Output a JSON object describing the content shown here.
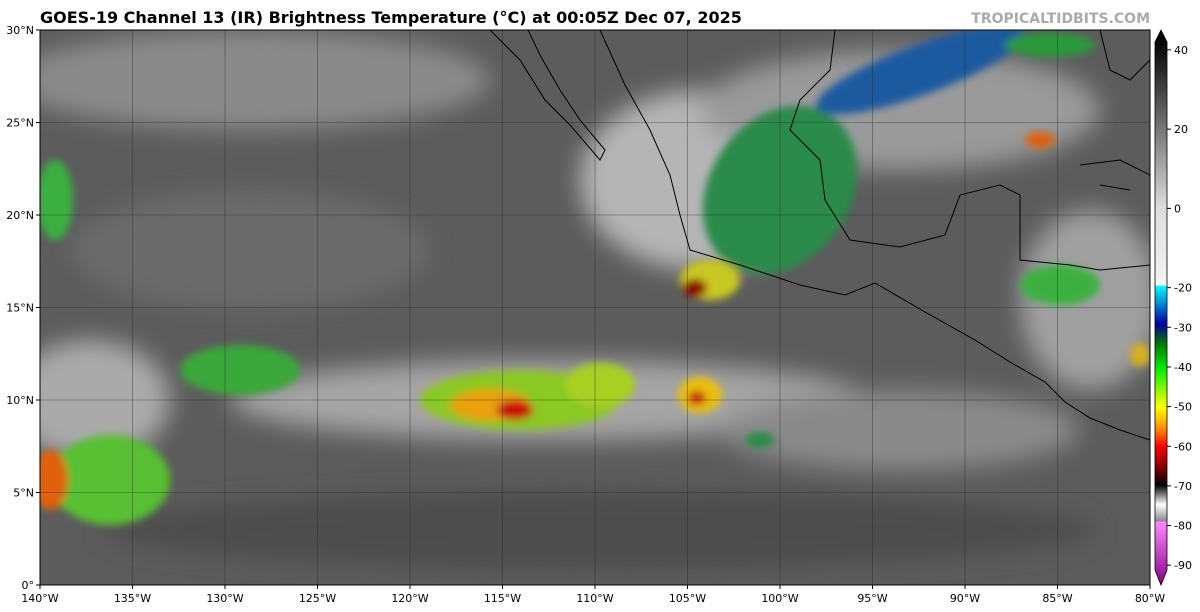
{
  "header": {
    "title": "GOES-19 Channel 13 (IR) Brightness Temperature (°C) at 00:05Z Dec 07, 2025",
    "watermark": "TROPICALTIDBITS.COM"
  },
  "map": {
    "lon_range": [
      -140,
      -80
    ],
    "lat_range": [
      0,
      30
    ],
    "lon_ticks": [
      {
        "value": -140,
        "label": "140°W"
      },
      {
        "value": -135,
        "label": "135°W"
      },
      {
        "value": -130,
        "label": "130°W"
      },
      {
        "value": -125,
        "label": "125°W"
      },
      {
        "value": -120,
        "label": "120°W"
      },
      {
        "value": -115,
        "label": "115°W"
      },
      {
        "value": -110,
        "label": "110°W"
      },
      {
        "value": -105,
        "label": "105°W"
      },
      {
        "value": -100,
        "label": "100°W"
      },
      {
        "value": -95,
        "label": "95°W"
      },
      {
        "value": -90,
        "label": "90°W"
      },
      {
        "value": -85,
        "label": "85°W"
      },
      {
        "value": -80,
        "label": "80°W"
      }
    ],
    "lat_ticks": [
      {
        "value": 0,
        "label": "0°"
      },
      {
        "value": 5,
        "label": "5°N"
      },
      {
        "value": 10,
        "label": "10°N"
      },
      {
        "value": 15,
        "label": "15°N"
      },
      {
        "value": 20,
        "label": "20°N"
      },
      {
        "value": 25,
        "label": "25°N"
      },
      {
        "value": 30,
        "label": "30°N"
      }
    ]
  },
  "colorbar": {
    "lim": [
      -95,
      45
    ],
    "ticks": [
      40,
      20,
      0,
      -20,
      -30,
      -40,
      -50,
      -60,
      -70,
      -80,
      -90
    ]
  }
}
